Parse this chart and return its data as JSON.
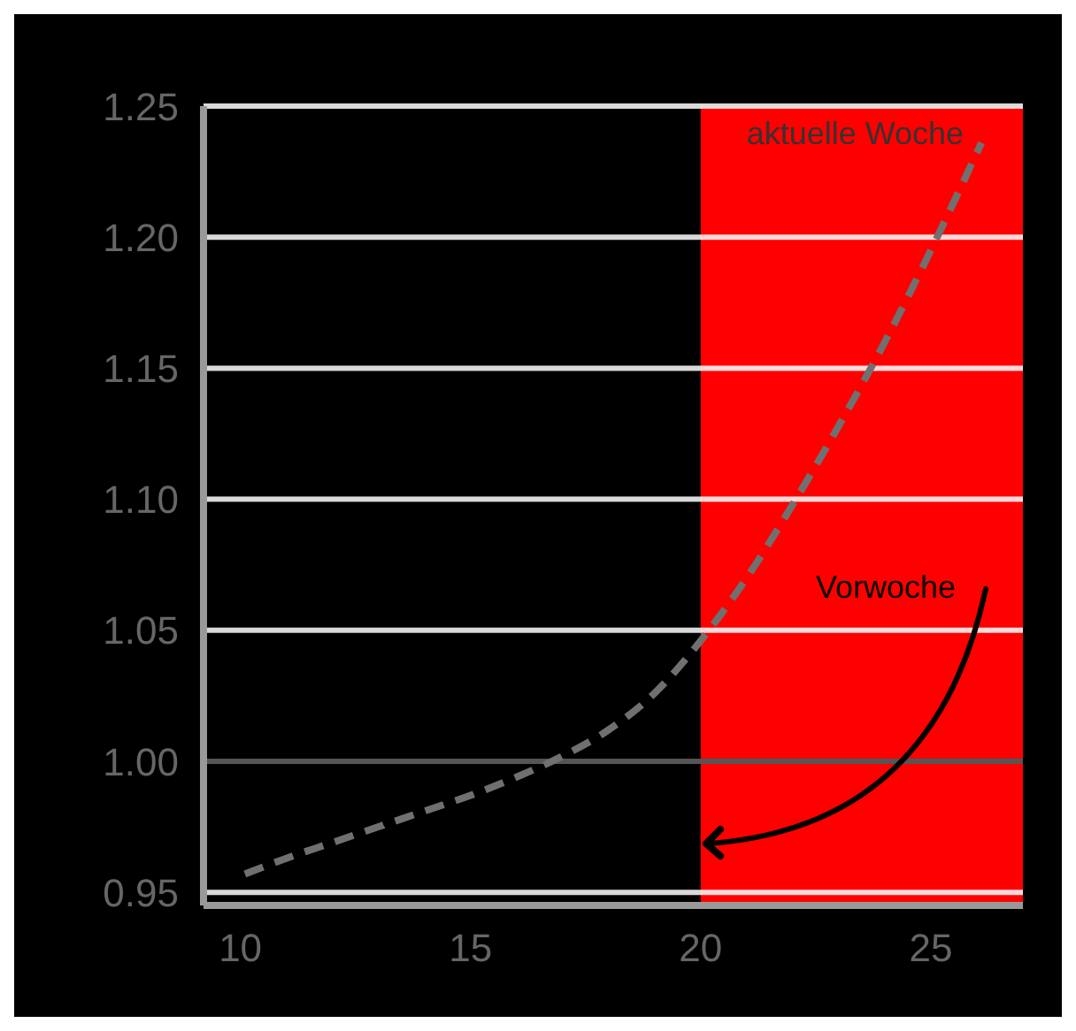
{
  "chart_data": {
    "type": "line",
    "series": [
      {
        "name": "aktuelle Woche",
        "color": "#707070",
        "line_style": "dashed",
        "x": [
          10.1,
          11,
          12,
          13,
          14,
          15,
          16,
          17,
          18,
          19,
          20,
          21,
          22,
          23,
          24,
          25,
          26.1
        ],
        "values": [
          0.957,
          0.963,
          0.969,
          0.975,
          0.981,
          0.987,
          0.994,
          1.002,
          1.012,
          1.026,
          1.046,
          1.07,
          1.098,
          1.128,
          1.16,
          1.195,
          1.236
        ]
      }
    ],
    "annotations": [
      "Vorwoche"
    ],
    "xlim": [
      9.2,
      27
    ],
    "xticks": [
      10,
      15,
      20,
      25
    ],
    "ylim": [
      0.945,
      1.25
    ],
    "yticks": [
      0.95,
      {
        "value": 1.0,
        "label": "1.00"
      },
      1.05,
      {
        "value": 1.1,
        "label": "1.10"
      },
      1.15,
      {
        "value": 1.2,
        "label": "1.20"
      },
      1.25
    ],
    "bands": [
      {
        "axis": "x",
        "from": 20,
        "to": 27,
        "color": "#ff0000"
      }
    ],
    "ref_lines": [
      {
        "axis": "y",
        "value": 1.0,
        "color": "#555555"
      }
    ],
    "grid": "y",
    "legend": false,
    "marker": "none"
  }
}
